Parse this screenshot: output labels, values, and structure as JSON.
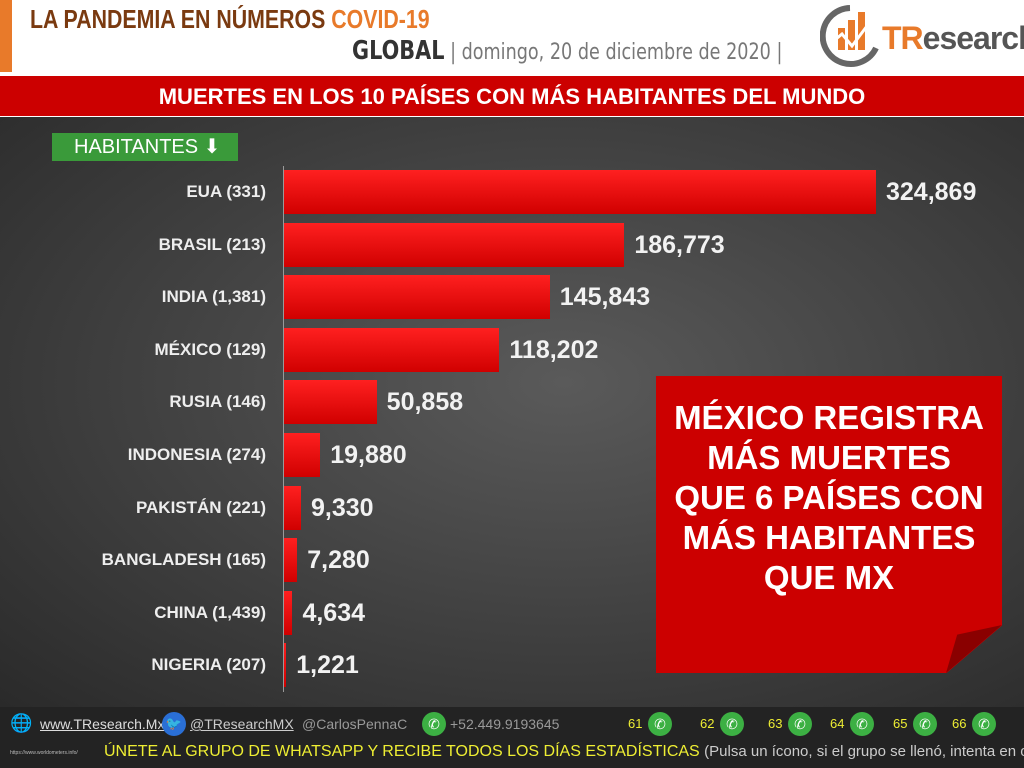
{
  "header": {
    "title": "LA PANDEMIA EN NÚMEROS",
    "title_accent": "COVID-19",
    "scope": "GLOBAL",
    "date": "domingo, 20 de diciembre de 2020",
    "logo": "TResearch"
  },
  "banner": "MUERTES EN LOS 10 PAÍSES CON MÁS HABITANTES DEL MUNDO",
  "sort_badge": "HABITANTES",
  "chart_data": {
    "type": "bar",
    "orientation": "horizontal",
    "title": "MUERTES EN LOS 10 PAÍSES CON MÁS HABITANTES DEL MUNDO",
    "categories": [
      "EUA (331)",
      "BRASIL (213)",
      "INDIA (1,381)",
      "MÉXICO (129)",
      "RUSIA (146)",
      "INDONESIA (274)",
      "PAKISTÁN (221)",
      "BANGLADESH (165)",
      "CHINA (1,439)",
      "NIGERIA (207)"
    ],
    "values": [
      324869,
      186773,
      145843,
      118202,
      50858,
      19880,
      9330,
      7280,
      4634,
      1221
    ],
    "labels": [
      "324,869",
      "186,773",
      "145,843",
      "118,202",
      "50,858",
      "19,880",
      "9,330",
      "7,280",
      "4,634",
      "1,221"
    ],
    "bar_color": "#ff0000",
    "grid": false
  },
  "callout": [
    "MÉXICO REGISTRA",
    "MÁS MUERTES",
    "QUE 6 PAÍSES CON",
    "MÁS HABITANTES",
    "QUE MX"
  ],
  "footer": {
    "web": "www.TResearch.Mx",
    "twitter": "@TResearchMX",
    "twitter2": "@CarlosPennaC",
    "phone": "+52.449.9193645",
    "groups": [
      "61",
      "62",
      "63",
      "64",
      "65",
      "66"
    ],
    "source": "https://www.worldometers.info/",
    "cta": "ÚNETE AL GRUPO DE WHATSAPP Y RECIBE TODOS LOS DÍAS ESTADÍSTICAS",
    "cta_note": "(Pulsa un ícono, si el grupo se llenó, intenta en otro)"
  }
}
